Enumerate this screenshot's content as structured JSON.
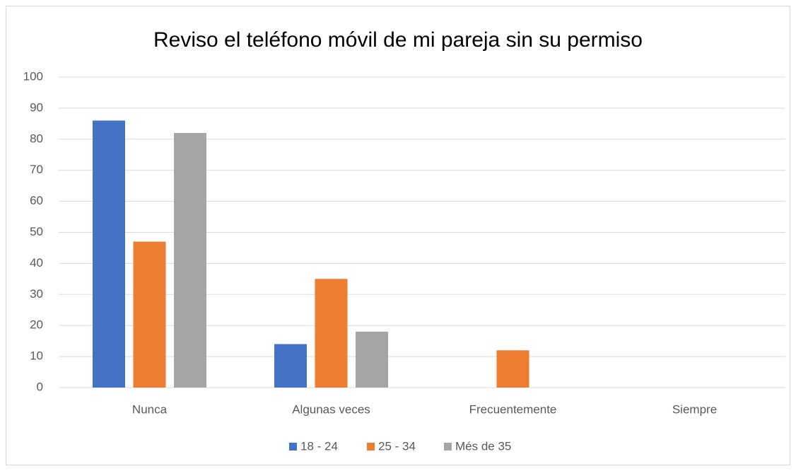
{
  "chart_data": {
    "type": "bar",
    "title": "Reviso el teléfono móvil de mi pareja sin su permiso",
    "categories": [
      "Nunca",
      "Algunas veces",
      "Frecuentemente",
      "Siempre"
    ],
    "series": [
      {
        "name": "18 - 24",
        "color": "#4472c4",
        "values": [
          86,
          14,
          0,
          0
        ]
      },
      {
        "name": "25 - 34",
        "color": "#ed7d31",
        "values": [
          47,
          35,
          12,
          0
        ]
      },
      {
        "name": "Més de 35",
        "color": "#a5a5a5",
        "values": [
          82,
          18,
          0,
          0
        ]
      }
    ],
    "ylim": [
      0,
      100
    ],
    "yticks": [
      0,
      10,
      20,
      30,
      40,
      50,
      60,
      70,
      80,
      90,
      100
    ],
    "grid": true,
    "legend": "bottom"
  }
}
